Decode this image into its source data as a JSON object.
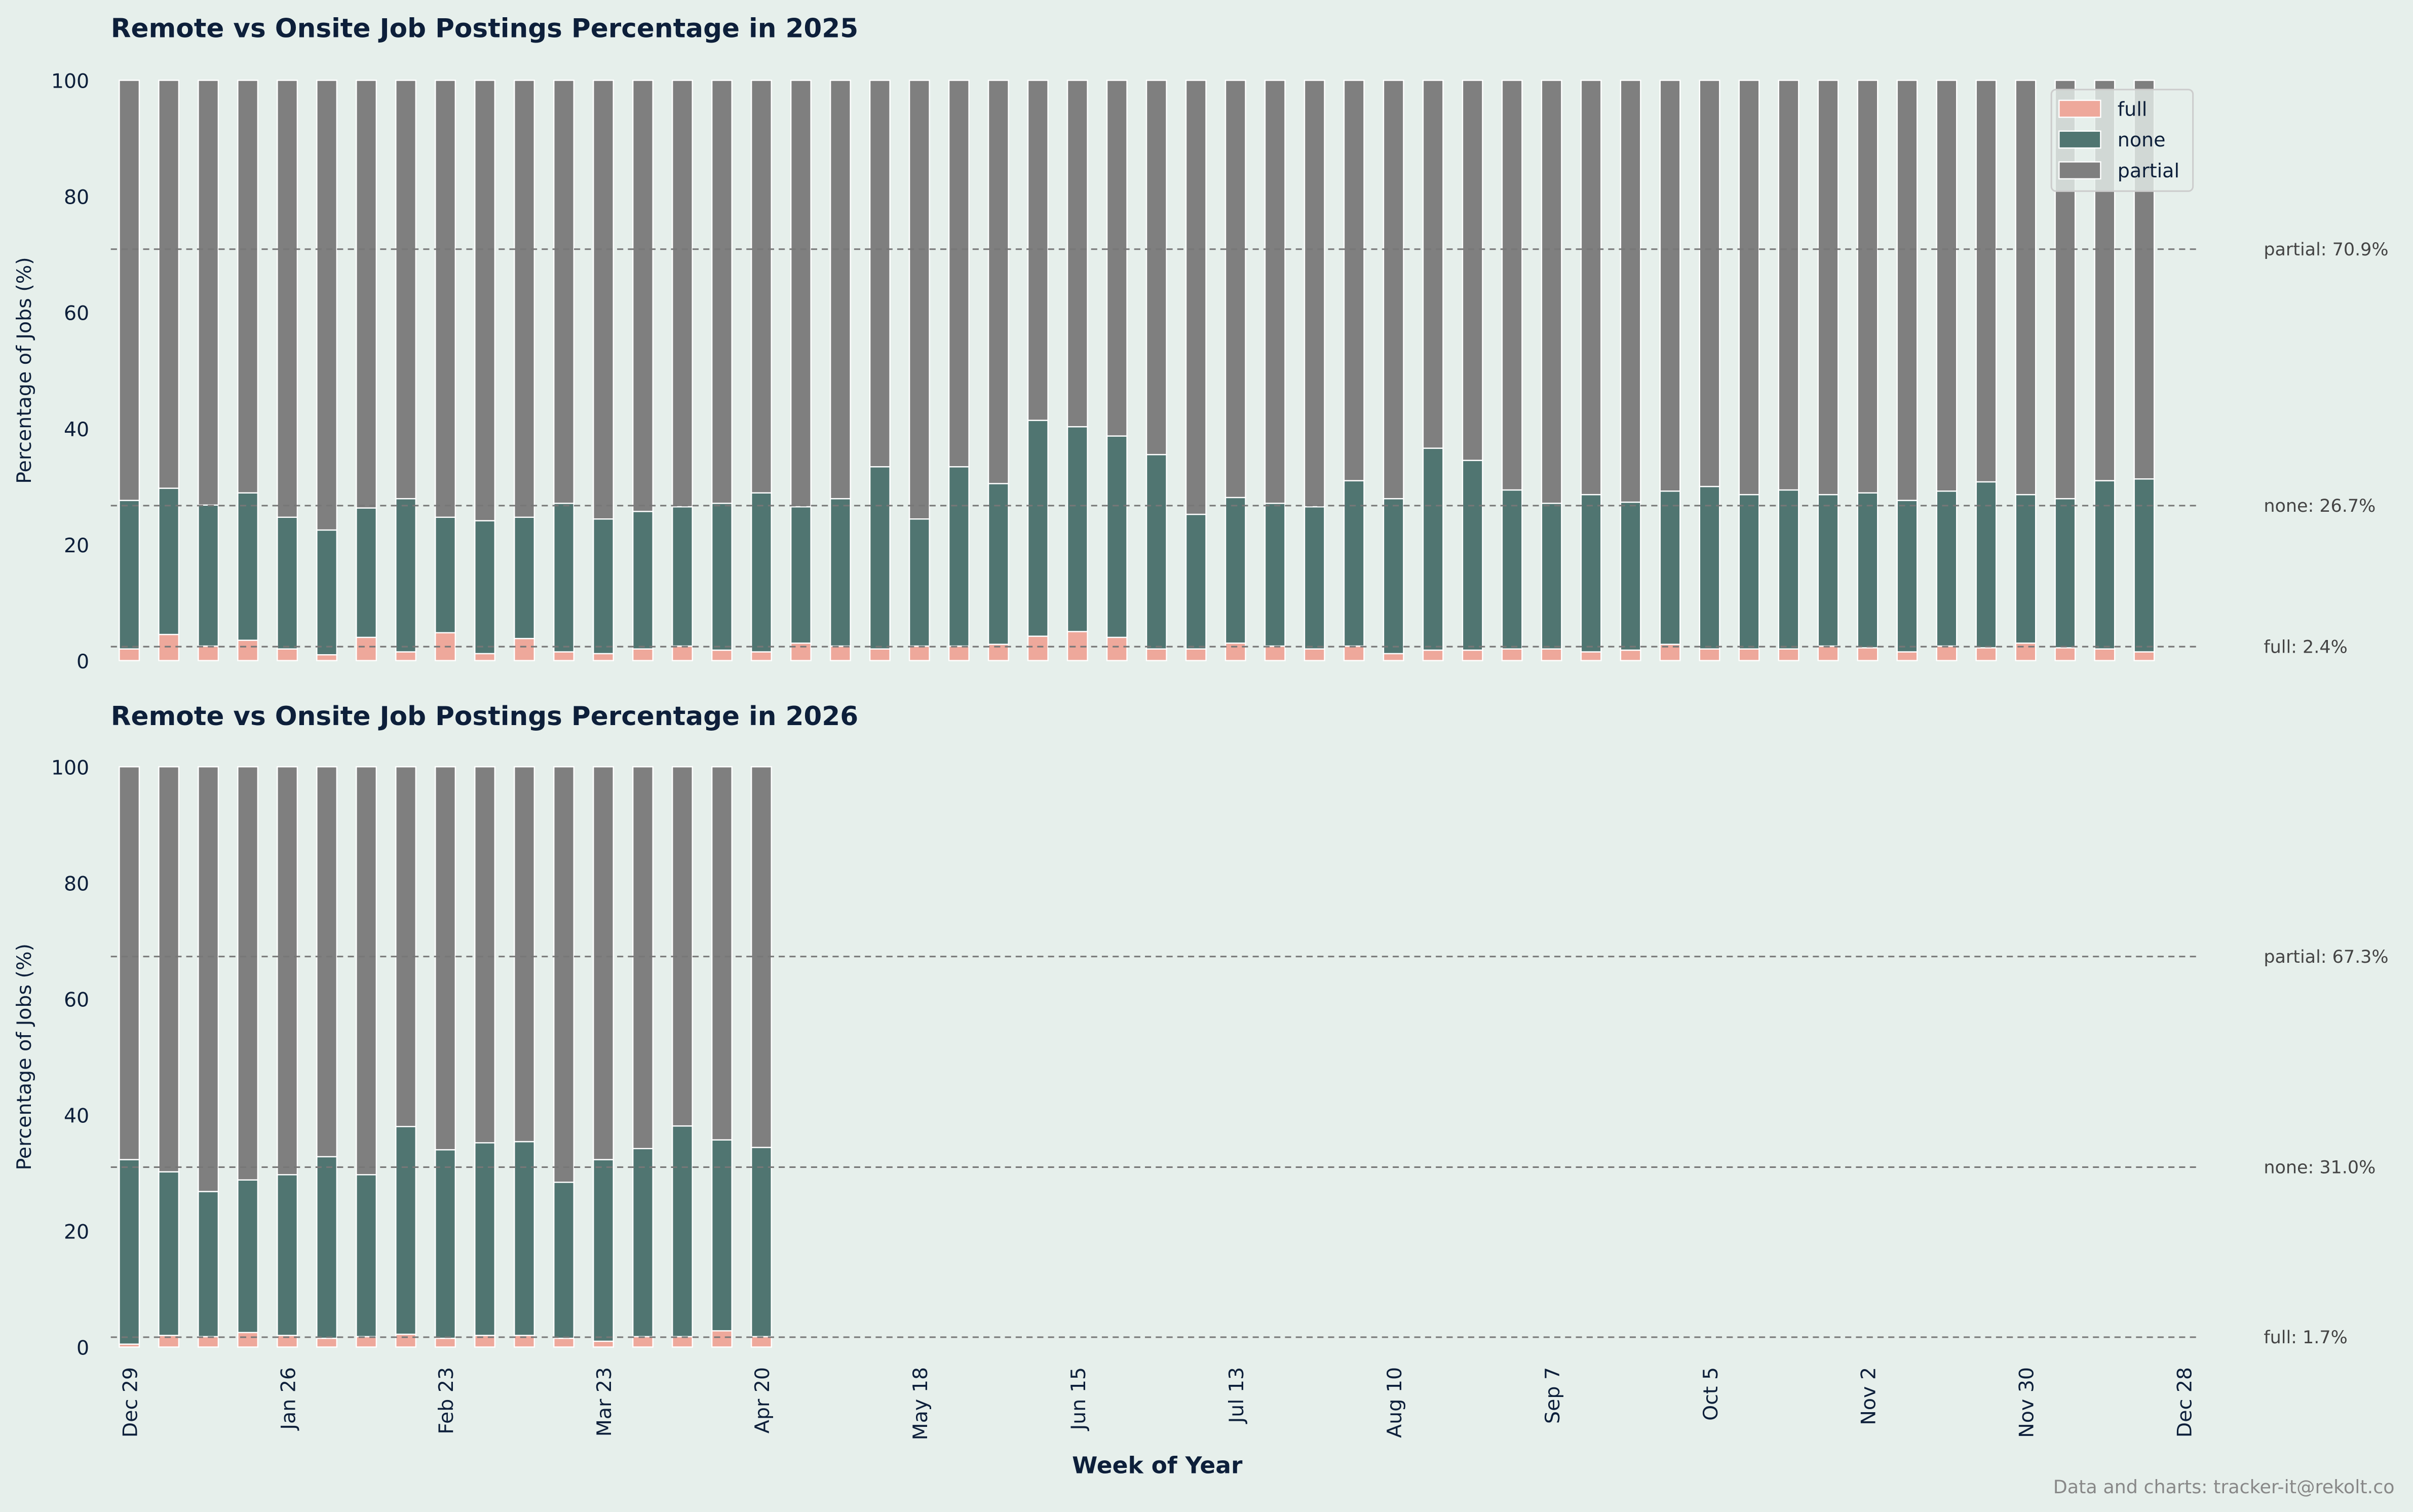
{
  "colors": {
    "background": "#e6efeb",
    "full": "#eea89b",
    "none": "#507571",
    "partial": "#7f7f7f",
    "text": "#0d1f3a"
  },
  "xlabel": "Week of Year",
  "x_ticks": [
    "Dec 29",
    "Jan 26",
    "Feb 23",
    "Mar 23",
    "Apr 20",
    "May 18",
    "Jun 15",
    "Jul 13",
    "Aug 10",
    "Sep 7",
    "Oct 5",
    "Nov 2",
    "Nov 30",
    "Dec 28"
  ],
  "footer": "Data and charts: tracker-it@rekolt.co",
  "legend": {
    "placement": "top-right",
    "entries": [
      "full",
      "none",
      "partial"
    ]
  },
  "chart_data": [
    {
      "type": "bar",
      "stacked": true,
      "title": "Remote vs Onsite Job Postings Percentage in 2025",
      "ylabel": "Percentage of Jobs (%)",
      "ylim": [
        0,
        100
      ],
      "yticks": [
        "0",
        "20",
        "40",
        "60",
        "80",
        "100"
      ],
      "x": "weekly, starting Dec 29, every week",
      "series": [
        {
          "name": "full",
          "values": [
            2.0,
            4.5,
            2.5,
            3.5,
            2.0,
            1.0,
            4.0,
            1.5,
            4.8,
            1.2,
            3.8,
            1.5,
            1.2,
            2.0,
            2.5,
            1.8,
            1.5,
            3.0,
            2.5,
            2.0,
            2.5,
            2.5,
            2.8,
            4.2,
            5.0,
            4.0,
            2.0,
            2.0,
            3.0,
            2.5,
            2.0,
            2.5,
            1.2,
            1.8,
            1.8,
            2.0,
            2.0,
            1.5,
            1.8,
            2.8,
            2.0,
            2.0,
            2.0,
            2.5,
            2.2,
            1.5,
            2.5,
            2.2,
            3.0,
            2.2,
            2.0,
            1.5
          ]
        },
        {
          "name": "none",
          "values": [
            25.6,
            25.2,
            24.3,
            25.4,
            22.7,
            21.5,
            22.3,
            26.4,
            19.9,
            22.9,
            20.9,
            25.6,
            23.2,
            23.7,
            24.0,
            25.3,
            27.4,
            23.5,
            25.4,
            31.4,
            21.9,
            30.9,
            27.7,
            37.2,
            35.3,
            34.7,
            33.5,
            23.2,
            25.1,
            24.6,
            24.5,
            28.5,
            26.7,
            34.8,
            32.7,
            27.4,
            25.1,
            27.1,
            25.5,
            26.4,
            28.0,
            26.6,
            27.4,
            26.1,
            26.7,
            26.1,
            26.7,
            28.6,
            25.6,
            25.7,
            29.0,
            29.8
          ]
        },
        {
          "name": "partial",
          "values": "remainder to 100"
        }
      ],
      "averages": [
        {
          "series": "partial",
          "value": 70.9,
          "label": "partial: 70.9%"
        },
        {
          "series": "none",
          "value": 26.7,
          "label": "none: 26.7%"
        },
        {
          "series": "full",
          "value": 2.4,
          "label": "full: 2.4%"
        }
      ]
    },
    {
      "type": "bar",
      "stacked": true,
      "title": "Remote vs Onsite Job Postings Percentage in 2026",
      "ylabel": "Percentage of Jobs (%)",
      "ylim": [
        0,
        100
      ],
      "yticks": [
        "0",
        "20",
        "40",
        "60",
        "80",
        "100"
      ],
      "series": [
        {
          "name": "full",
          "values": [
            0.5,
            2.0,
            1.8,
            2.5,
            2.0,
            1.5,
            1.8,
            2.2,
            1.5,
            2.0,
            2.0,
            1.5,
            1.0,
            1.8,
            1.8,
            2.8,
            1.8
          ]
        },
        {
          "name": "none",
          "values": [
            31.8,
            28.2,
            25.0,
            26.3,
            27.7,
            31.3,
            27.9,
            35.8,
            32.5,
            33.2,
            33.4,
            26.9,
            31.3,
            32.4,
            36.3,
            32.9,
            32.6
          ]
        },
        {
          "name": "partial",
          "values": "remainder to 100"
        }
      ],
      "averages": [
        {
          "series": "partial",
          "value": 67.3,
          "label": "partial: 67.3%"
        },
        {
          "series": "none",
          "value": 31.0,
          "label": "none: 31.0%"
        },
        {
          "series": "full",
          "value": 1.7,
          "label": "full: 1.7%"
        }
      ]
    }
  ]
}
